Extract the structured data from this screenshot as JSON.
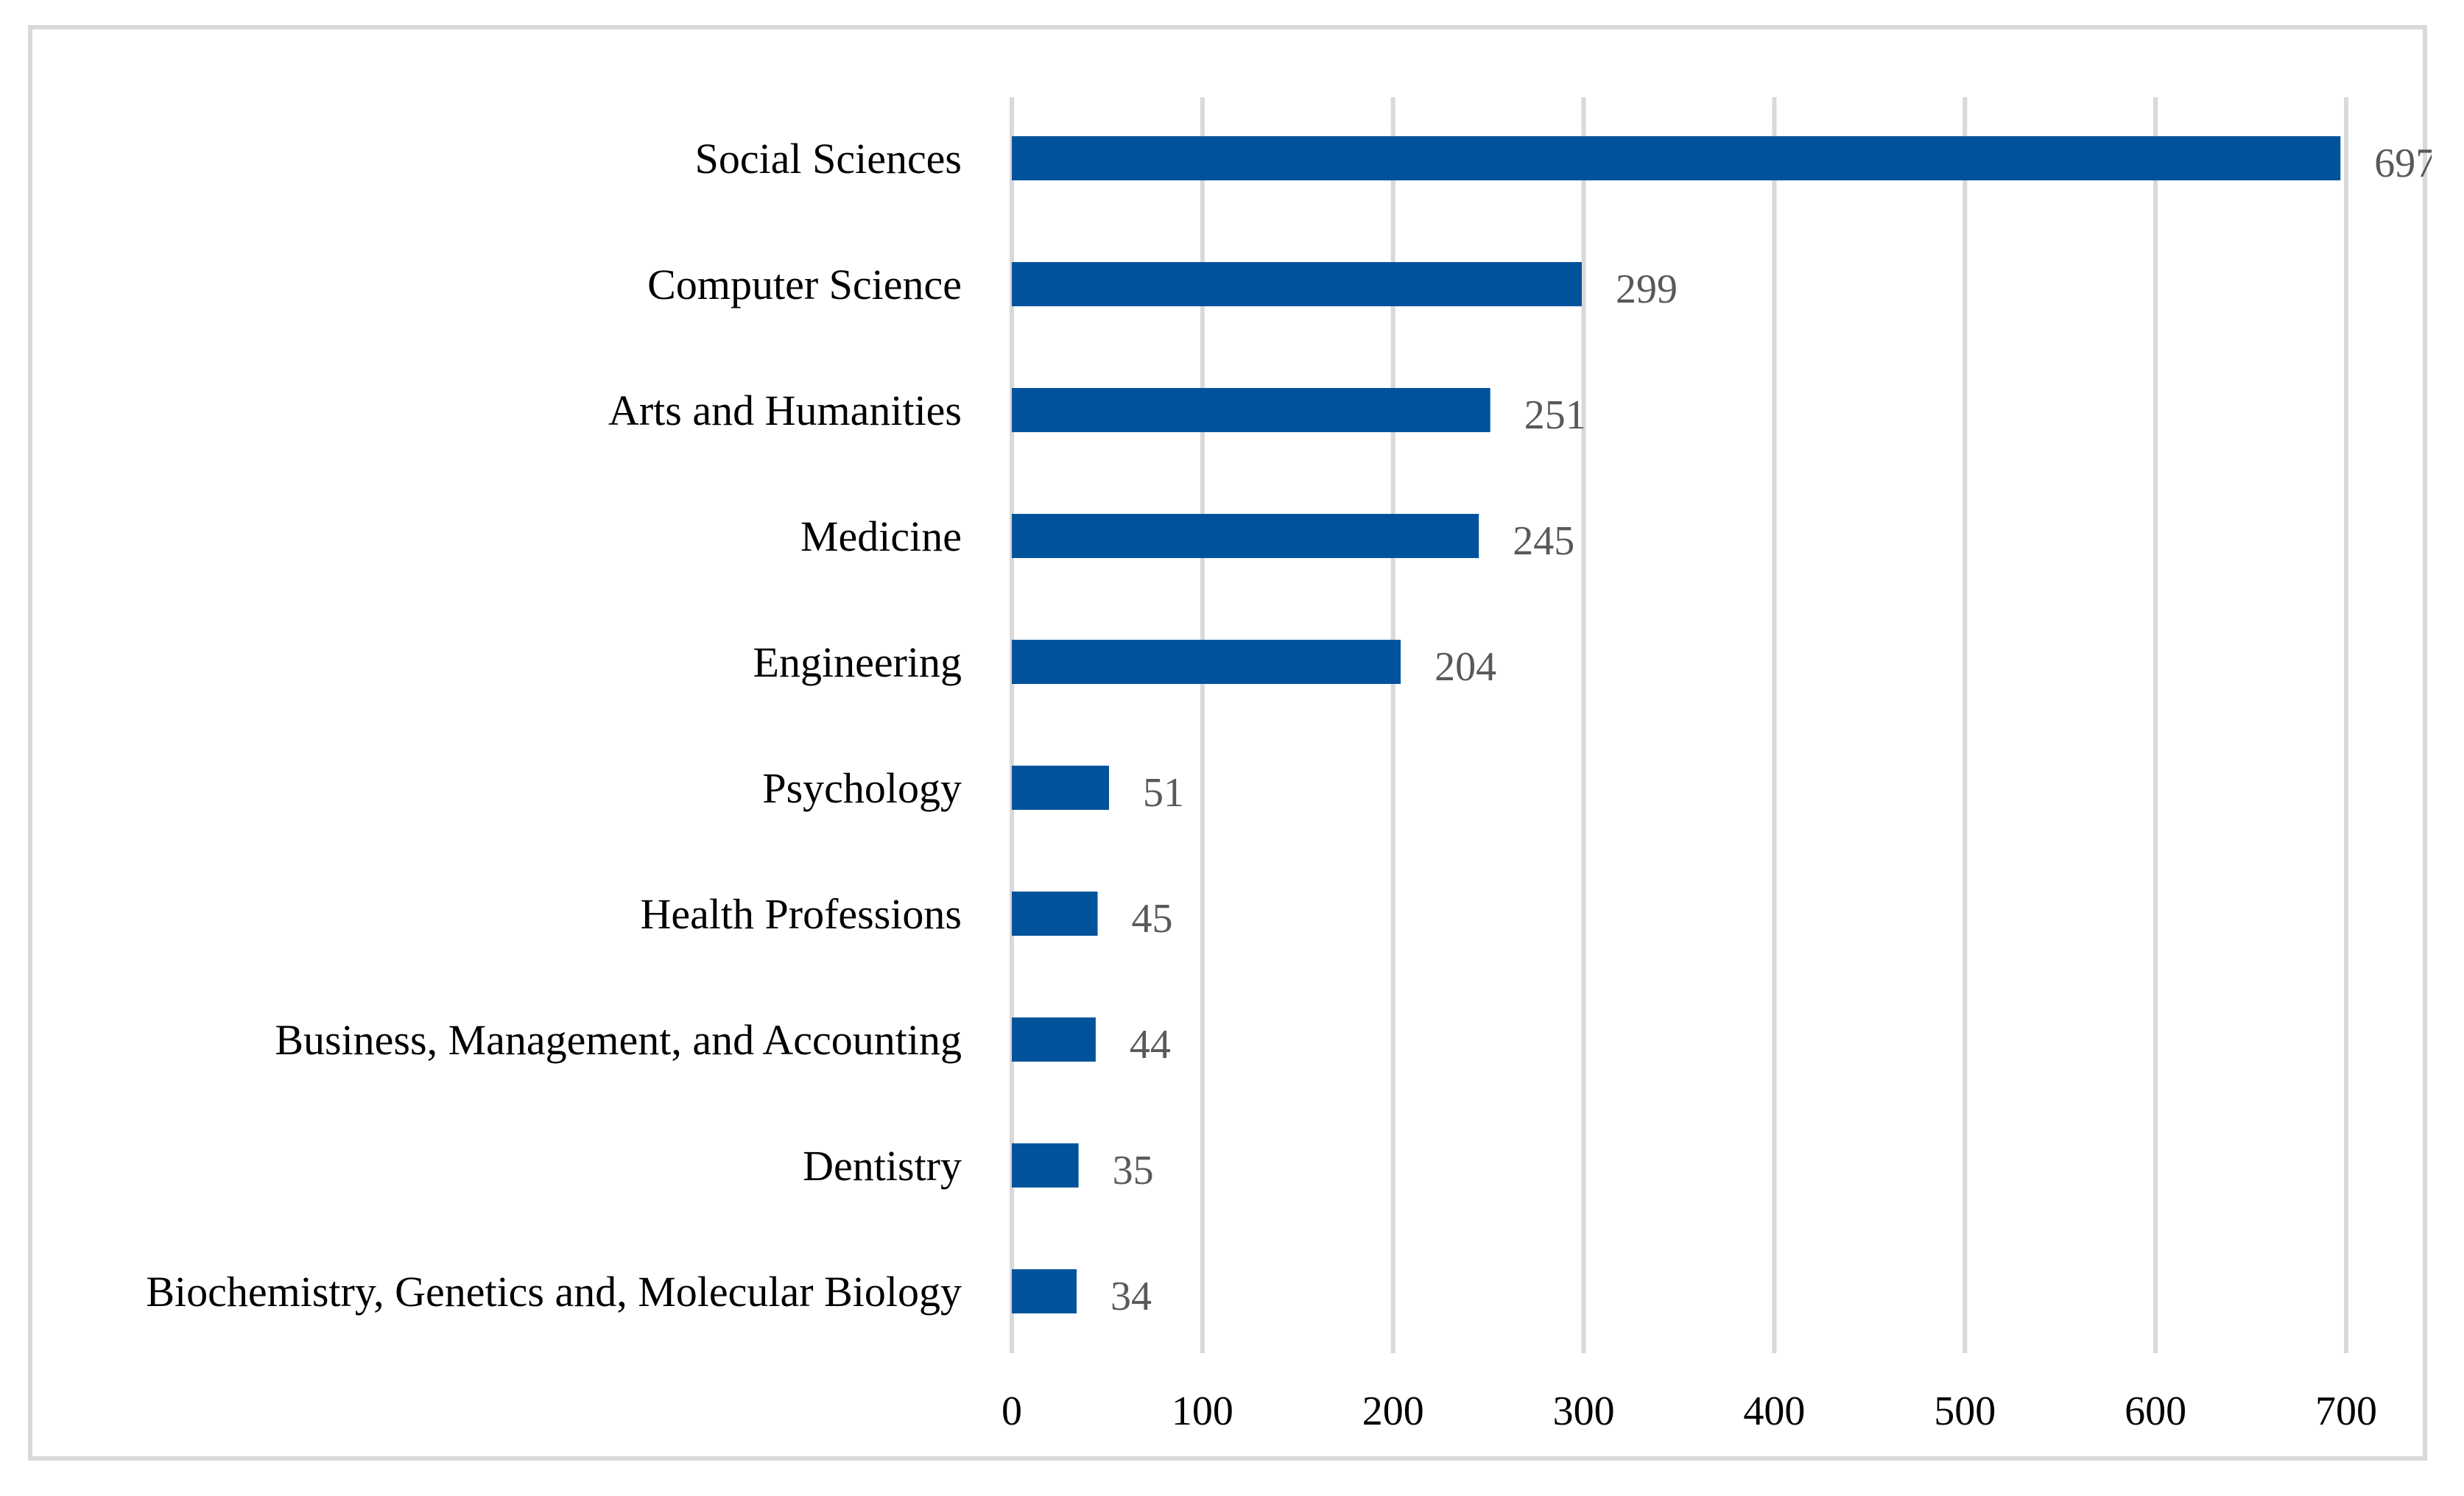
{
  "chart_data": {
    "type": "bar",
    "orientation": "horizontal",
    "title": "",
    "xlabel": "",
    "ylabel": "",
    "categories": [
      "Social Sciences",
      "Computer Science",
      "Arts and Humanities",
      "Medicine",
      "Engineering",
      "Psychology",
      "Health Professions",
      "Business, Management, and Accounting",
      "Dentistry",
      "Biochemistry, Genetics and, Molecular Biology"
    ],
    "values": [
      697,
      299,
      251,
      245,
      204,
      51,
      45,
      44,
      35,
      34
    ],
    "data_labels": [
      "697",
      "299",
      "251",
      "245",
      "204",
      "51",
      "45",
      "44",
      "35",
      "34"
    ],
    "xlim": [
      0,
      700
    ],
    "xticks": [
      0,
      100,
      200,
      300,
      400,
      500,
      600,
      700
    ],
    "xtick_labels": [
      "0",
      "100",
      "200",
      "300",
      "400",
      "500",
      "600",
      "700"
    ],
    "grid": "vertical",
    "legend": "none",
    "colors": {
      "bar": "#00539b",
      "grid": "#d9d9d9",
      "value_label": "#595959",
      "frame": "#d9d9d9"
    }
  }
}
